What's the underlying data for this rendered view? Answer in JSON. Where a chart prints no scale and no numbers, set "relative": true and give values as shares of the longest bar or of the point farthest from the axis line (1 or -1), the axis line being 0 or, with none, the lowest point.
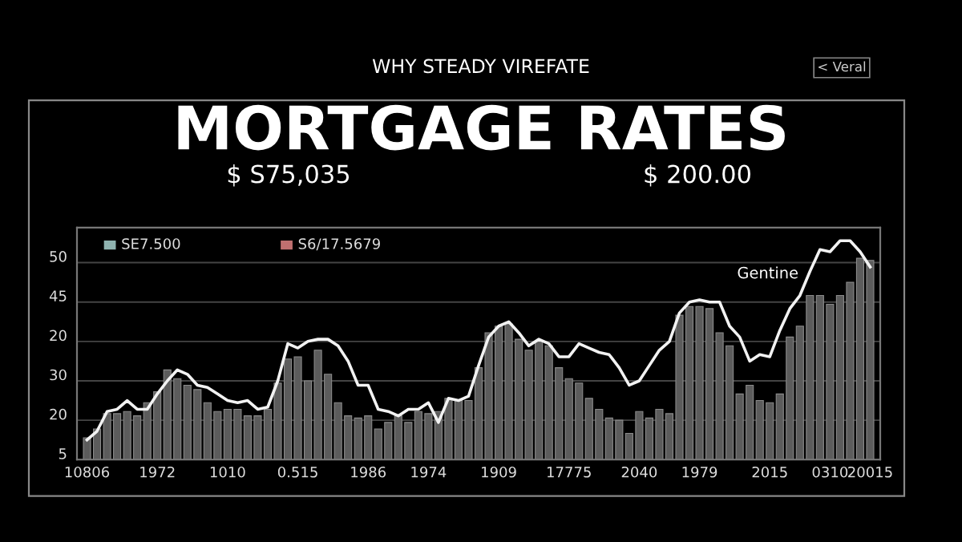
{
  "chart_data": {
    "type": "bar",
    "title": "MORTGAGE RATES",
    "subtitle": "WHY STEADY VIREFATE",
    "relative": true,
    "annotations": [
      "$ S75,035",
      "$ 200.00",
      "< Veral",
      "SE7.500",
      "S6/17.5679",
      "Gentine",
      "5",
      "20",
      "30",
      "20",
      "45",
      "50"
    ],
    "categories": [
      "10806",
      null,
      null,
      null,
      null,
      null,
      null,
      "1972",
      null,
      null,
      null,
      null,
      null,
      null,
      "1010",
      null,
      null,
      null,
      null,
      null,
      null,
      "0.515",
      null,
      null,
      null,
      null,
      null,
      null,
      "1986",
      null,
      null,
      null,
      null,
      null,
      "1974",
      null,
      null,
      null,
      null,
      null,
      null,
      "1909",
      null,
      null,
      null,
      null,
      null,
      null,
      "17775",
      null,
      null,
      null,
      null,
      null,
      null,
      "2040",
      null,
      null,
      null,
      null,
      null,
      "1979",
      null,
      null,
      null,
      null,
      null,
      null,
      "2015",
      null,
      null,
      null,
      null,
      null,
      "0310",
      null,
      null,
      null,
      "20015"
    ],
    "series": [
      {
        "color": "#5c5c5c",
        "values": [
          0.1,
          0.14,
          0.21,
          0.21,
          0.22,
          0.2,
          0.26,
          0.31,
          0.41,
          0.37,
          0.34,
          0.32,
          0.26,
          0.22,
          0.23,
          0.23,
          0.2,
          0.2,
          0.23,
          0.35,
          0.46,
          0.47,
          0.36,
          0.5,
          0.39,
          0.26,
          0.2,
          0.19,
          0.2,
          0.14,
          0.17,
          0.2,
          0.17,
          0.22,
          0.21,
          0.22,
          0.28,
          0.27,
          0.27,
          0.42,
          0.58,
          0.61,
          0.62,
          0.55,
          0.5,
          0.54,
          0.52,
          0.42,
          0.37,
          0.35,
          0.28,
          0.23,
          0.19,
          0.18,
          0.12,
          0.22,
          0.19,
          0.23,
          0.21,
          0.66,
          0.7,
          0.7,
          0.69,
          0.58,
          0.52,
          0.3,
          0.34,
          0.27,
          0.26,
          0.3,
          0.56,
          0.61,
          0.75,
          0.75,
          0.71,
          0.75,
          0.81,
          0.92,
          0.91
        ]
      },
      {
        "type": "line",
        "color": "#f2f2f2",
        "values": [
          0.09,
          0.13,
          0.22,
          0.23,
          0.27,
          0.23,
          0.23,
          0.3,
          0.36,
          0.41,
          0.39,
          0.34,
          0.33,
          0.3,
          0.27,
          0.26,
          0.27,
          0.23,
          0.24,
          0.36,
          0.53,
          0.51,
          0.54,
          0.55,
          0.55,
          0.52,
          0.45,
          0.34,
          0.34,
          0.23,
          0.22,
          0.2,
          0.23,
          0.23,
          0.26,
          0.17,
          0.28,
          0.27,
          0.29,
          0.43,
          0.56,
          0.61,
          0.63,
          0.58,
          0.52,
          0.55,
          0.53,
          0.47,
          0.47,
          0.53,
          0.51,
          0.49,
          0.48,
          0.42,
          0.34,
          0.36,
          0.43,
          0.5,
          0.54,
          0.67,
          0.72,
          0.73,
          0.72,
          0.72,
          0.61,
          0.56,
          0.45,
          0.48,
          0.47,
          0.59,
          0.69,
          0.75,
          0.86,
          0.96,
          0.95,
          1,
          1,
          0.95,
          0.88
        ]
      }
    ],
    "grid": "y",
    "legend": false
  }
}
